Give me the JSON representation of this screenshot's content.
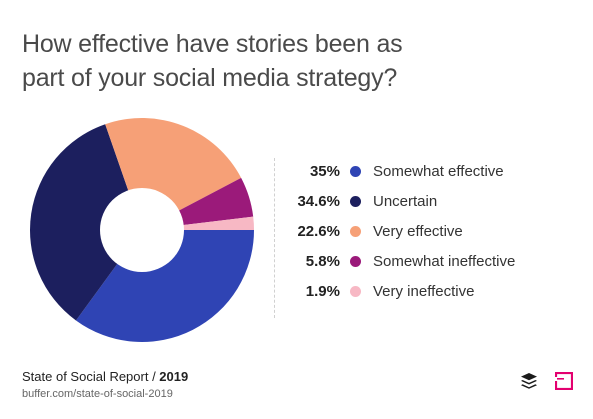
{
  "title": "How effective have stories been as part of your social media strategy?",
  "chart_data": {
    "type": "pie",
    "variant": "donut",
    "title": "How effective have stories been as part of your social media strategy?",
    "slices": [
      {
        "label": "Somewhat effective",
        "value": 35,
        "display": "35%",
        "color": "#2f44b4"
      },
      {
        "label": "Uncertain",
        "value": 34.6,
        "display": "34.6%",
        "color": "#1c1f5e"
      },
      {
        "label": "Very effective",
        "value": 22.6,
        "display": "22.6%",
        "color": "#f6a077"
      },
      {
        "label": "Somewhat ineffective",
        "value": 5.8,
        "display": "5.8%",
        "color": "#9b1a7a"
      },
      {
        "label": "Very ineffective",
        "value": 1.9,
        "display": "1.9%",
        "color": "#f7b8c4"
      }
    ],
    "legend_position": "right"
  },
  "footer": {
    "report_name": "State of Social Report / ",
    "year": "2019",
    "url": "buffer.com/state-of-social-2019"
  },
  "logos": {
    "buffer": "buffer-logo-icon",
    "brand": "brand-mark-icon"
  }
}
